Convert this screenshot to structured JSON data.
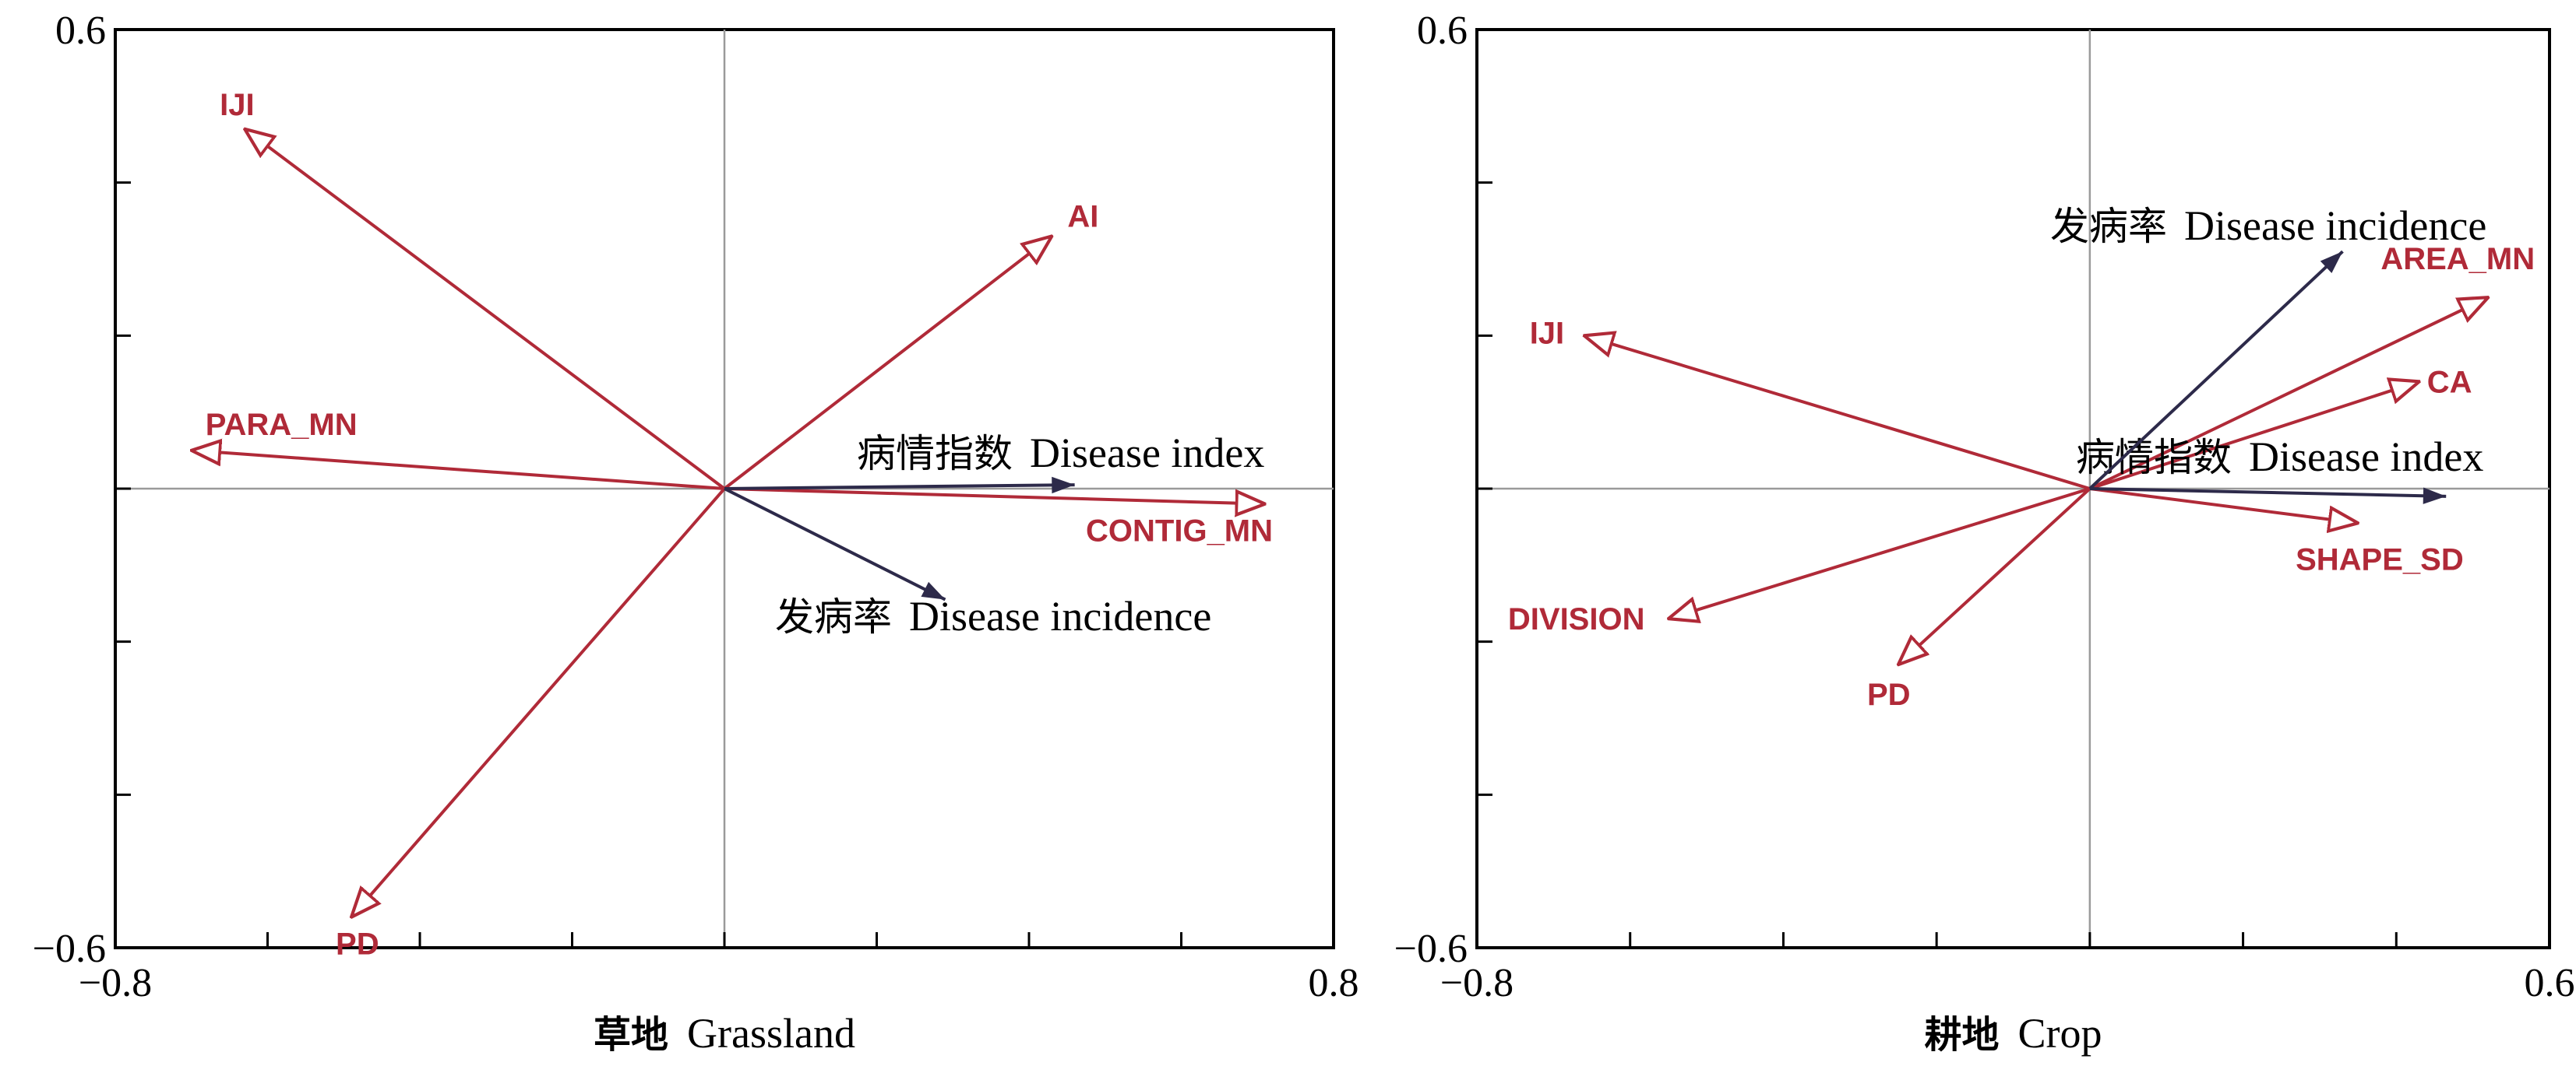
{
  "colors": {
    "environment": "#b02a38",
    "response": "#2d2a4a",
    "frame": "#000000",
    "zero_line": "#9a9a9a"
  },
  "chart_data": [
    {
      "type": "biplot",
      "grid": false,
      "xlim": [
        -0.8,
        0.8
      ],
      "ylim": [
        -0.6,
        0.6
      ],
      "xticks": [
        -0.8,
        -0.6,
        -0.4,
        -0.2,
        0.0,
        0.2,
        0.4,
        0.6,
        0.8
      ],
      "yticks": [
        -0.6,
        -0.4,
        -0.2,
        0.0,
        0.2,
        0.4,
        0.6
      ],
      "tick_labels": {
        "xmin": "−0.8",
        "xmax": "0.8",
        "ymin": "−0.6",
        "ymax": "0.6"
      },
      "xlabel_cn": "草地",
      "xlabel_en": "Grassland",
      "environment_vectors": [
        {
          "name": "IJI",
          "x": -0.63,
          "y": 0.47
        },
        {
          "name": "AI",
          "x": 0.43,
          "y": 0.33
        },
        {
          "name": "PARA_MN",
          "x": -0.7,
          "y": 0.05
        },
        {
          "name": "CONTIG_MN",
          "x": 0.71,
          "y": -0.02
        },
        {
          "name": "PD",
          "x": -0.49,
          "y": -0.56
        }
      ],
      "response_vectors": [
        {
          "name_cn": "病情指数",
          "name_en": "Disease index",
          "x": 0.46,
          "y": 0.005
        },
        {
          "name_cn": "发病率",
          "name_en": "Disease incidence",
          "x": 0.29,
          "y": -0.145
        }
      ]
    },
    {
      "type": "biplot",
      "grid": false,
      "xlim": [
        -0.8,
        0.6
      ],
      "ylim": [
        -0.6,
        0.6
      ],
      "xticks": [
        -0.8,
        -0.6,
        -0.4,
        -0.2,
        0.0,
        0.2,
        0.4,
        0.6
      ],
      "yticks": [
        -0.6,
        -0.4,
        -0.2,
        0.0,
        0.2,
        0.4,
        0.6
      ],
      "tick_labels": {
        "xmin": "−0.8",
        "xmax": "0.6",
        "ymin": "−0.6",
        "ymax": "0.6"
      },
      "xlabel_cn": "耕地",
      "xlabel_en": "Crop",
      "environment_vectors": [
        {
          "name": "IJI",
          "x": -0.66,
          "y": 0.2
        },
        {
          "name": "AREA_MN",
          "x": 0.52,
          "y": 0.25
        },
        {
          "name": "CA",
          "x": 0.43,
          "y": 0.14
        },
        {
          "name": "SHAPE_SD",
          "x": 0.35,
          "y": -0.045
        },
        {
          "name": "DIVISION",
          "x": -0.55,
          "y": -0.17
        },
        {
          "name": "PD",
          "x": -0.25,
          "y": -0.23
        }
      ],
      "response_vectors": [
        {
          "name_cn": "病情指数",
          "name_en": "Disease index",
          "x": 0.465,
          "y": -0.01
        },
        {
          "name_cn": "发病率",
          "name_en": "Disease incidence",
          "x": 0.33,
          "y": 0.31
        }
      ]
    }
  ]
}
